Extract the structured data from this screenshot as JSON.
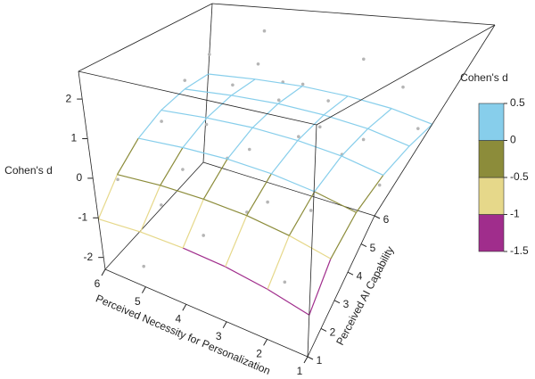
{
  "chart_data": {
    "type": "surface3d",
    "xlabel": "Perceived Necessity for Personalization",
    "ylabel": "Perceived AI Capability",
    "zlabel": "Cohen's d",
    "xlim": [
      1,
      6
    ],
    "xticks": [
      1,
      2,
      3,
      4,
      5,
      6
    ],
    "ylim": [
      1,
      6
    ],
    "yticks": [
      1,
      2,
      3,
      4,
      5,
      6
    ],
    "zlim": [
      -2.3,
      2.7
    ],
    "zticks": [
      -2,
      -1,
      0,
      1,
      2
    ],
    "surface": {
      "x": [
        1,
        2,
        3,
        4,
        5,
        6
      ],
      "y": [
        1,
        2,
        3,
        4,
        5,
        6
      ],
      "z": [
        [
          -1.4,
          -1.19,
          -1.04,
          -0.97,
          -0.96,
          -1.03
        ],
        [
          -0.74,
          -0.53,
          -0.38,
          -0.31,
          -0.3,
          -0.37
        ],
        [
          -0.26,
          -0.05,
          0.1,
          0.18,
          0.18,
          0.12
        ],
        [
          0.04,
          0.26,
          0.4,
          0.48,
          0.48,
          0.42
        ],
        [
          0.16,
          0.38,
          0.52,
          0.6,
          0.6,
          0.54
        ],
        [
          0.1,
          0.32,
          0.46,
          0.54,
          0.54,
          0.48
        ]
      ]
    },
    "points": {
      "color": "#b5b5b5",
      "x": [
        4,
        5,
        5,
        3,
        4,
        5,
        3,
        6,
        2,
        4,
        5,
        3,
        6,
        2,
        4,
        3,
        5,
        6,
        2,
        4,
        3,
        2,
        5,
        1,
        1,
        6,
        4,
        5,
        3,
        2
      ],
      "y": [
        5,
        5,
        6,
        6,
        6,
        4,
        5,
        5,
        6,
        4,
        3,
        4,
        4,
        5,
        3,
        3,
        2,
        2,
        3,
        2,
        2,
        2,
        1,
        4,
        5,
        6,
        5,
        6,
        5,
        4
      ],
      "z": [
        1.2,
        0.9,
        2.0,
        1.5,
        0.6,
        0.3,
        0.2,
        0.8,
        0.9,
        -0.1,
        -0.4,
        0.5,
        0.1,
        0.1,
        0.2,
        -0.6,
        -0.8,
        -0.5,
        -0.5,
        -1.2,
        -0.3,
        -1.6,
        -1.8,
        -0.2,
        0.6,
        1.1,
        0.7,
        1.0,
        0.9,
        0.3
      ]
    },
    "colorbar": {
      "title": "Cohen's d",
      "bins": [
        -1.5,
        -1,
        -0.5,
        0,
        0.5
      ],
      "colors": [
        "#a02d8c",
        "#e6d88a",
        "#8c8c3a",
        "#87ceeb"
      ],
      "ticks": [
        -1.5,
        -1,
        -0.5,
        0,
        0.5
      ]
    }
  }
}
